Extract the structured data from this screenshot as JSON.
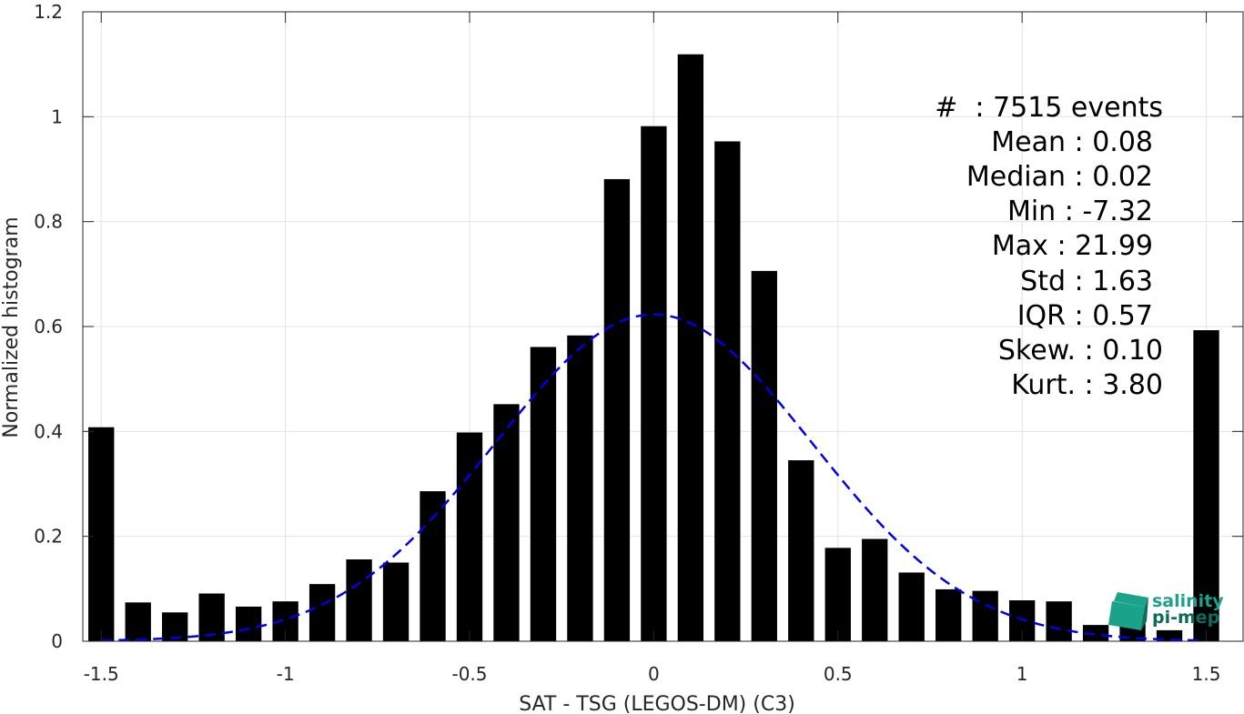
{
  "chart_data": {
    "type": "bar",
    "xlabel": "SAT - TSG (LEGOS-DM) (C3)",
    "ylabel": "Normalized histogram",
    "xlim": [
      -1.55,
      1.6
    ],
    "ylim": [
      0,
      1.2
    ],
    "grid": true,
    "xticks": [
      -1.5,
      -1,
      -0.5,
      0,
      0.5,
      1,
      1.5
    ],
    "xtick_labels": [
      "-1.5",
      "-1",
      "-0.5",
      "0",
      "0.5",
      "1",
      "1.5"
    ],
    "yticks": [
      0,
      0.2,
      0.4,
      0.6,
      0.8,
      1,
      1.2
    ],
    "ytick_labels": [
      "0",
      "0.2",
      "0.4",
      "0.6",
      "0.8",
      "1",
      "1.2"
    ],
    "bar_width": 0.07,
    "bar_color": "#000000",
    "bins": [
      -1.5,
      -1.4,
      -1.3,
      -1.2,
      -1.1,
      -1.0,
      -0.9,
      -0.8,
      -0.7,
      -0.6,
      -0.5,
      -0.4,
      -0.3,
      -0.2,
      -0.1,
      0.0,
      0.1,
      0.2,
      0.3,
      0.4,
      0.5,
      0.6,
      0.7,
      0.8,
      0.9,
      1.0,
      1.1,
      1.2,
      1.3,
      1.4,
      1.5
    ],
    "values": [
      0.408,
      0.074,
      0.055,
      0.091,
      0.066,
      0.076,
      0.109,
      0.156,
      0.15,
      0.286,
      0.398,
      0.452,
      0.561,
      0.583,
      0.881,
      0.982,
      1.119,
      0.953,
      0.706,
      0.345,
      0.178,
      0.195,
      0.131,
      0.099,
      0.096,
      0.078,
      0.076,
      0.031,
      0.051,
      0.021,
      0.593
    ],
    "fit_curve": {
      "style": "dashed",
      "color": "#0000e6",
      "mean": 0.0,
      "peak": 0.623,
      "sigma": 0.43,
      "x_range": [
        -1.5,
        1.5
      ]
    }
  },
  "stats": [
    {
      "label": "#  : 7515 events"
    },
    {
      "label": "Mean : 0.08"
    },
    {
      "label": "Median : 0.02"
    },
    {
      "label": "Min : -7.32"
    },
    {
      "label": "Max : 21.99"
    },
    {
      "label": "Std : 1.63"
    },
    {
      "label": "IQR : 0.57"
    },
    {
      "label": "Skew. : 0.10"
    },
    {
      "label": "Kurt. : 3.80"
    }
  ],
  "logo": {
    "line1": "salinity",
    "line2": "pi-mep",
    "color_primary": "#1aa38a",
    "color_dark": "#0d6b5c"
  }
}
